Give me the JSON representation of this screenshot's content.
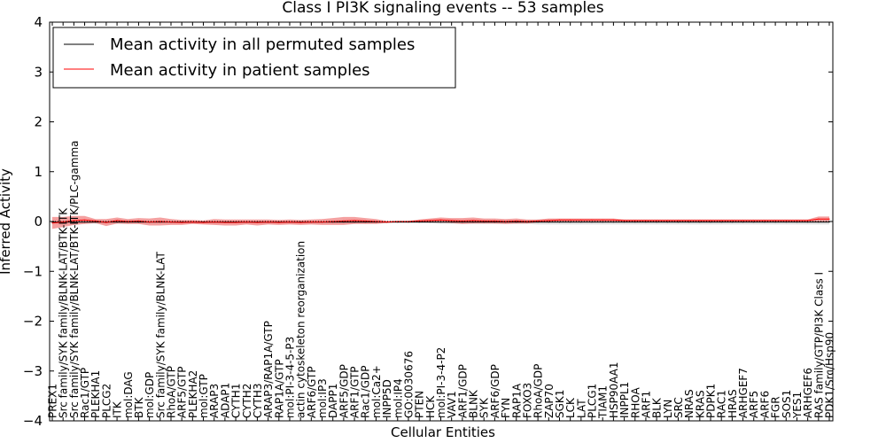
{
  "chart_data": {
    "type": "line",
    "title": "Class I PI3K signaling events -- 53 samples",
    "xlabel": "Cellular Entities",
    "ylabel": "Inferred Activity",
    "ylim": [
      -4,
      4
    ],
    "yticks": [
      -4,
      -3,
      -2,
      -1,
      0,
      1,
      2,
      3,
      4
    ],
    "legend_position": "top-left",
    "categories": [
      "PREX1",
      "Src family/SYK family/BLNK-LAT/BTK-ITK",
      "Src family/SYK family/BLNK-LAT/BTK-ITK/PLC-gamma",
      "Rac1/GTP",
      "PLEKHA1",
      "PLCG2",
      "ITK",
      "mol:DAG",
      "BTK",
      "mol:GDP",
      "Src family/SYK family/BLNK-LAT",
      "RhoA/GTP",
      "ARF5/GTP",
      "PLEKHA2",
      "mol:GTP",
      "ARAP3",
      "ADAP1",
      "CYTH1",
      "CYTH2",
      "CYTH3",
      "ARAP3/RAP1A/GTP",
      "RAP1A/GTP",
      "mol:PI-3-4-5-P3",
      "actin cytoskeleton reorganization",
      "ARF6/GTP",
      "mol:IP3",
      "DAPP1",
      "ARF5/GDP",
      "ARF1/GTP",
      "Rac1/GDP",
      "mol:Ca2+",
      "INPP5D",
      "mol:IP4",
      "GO:0030676",
      "PTEN",
      "HCK",
      "mol:PI-3-4-P2",
      "VAV1",
      "ARF1/GDP",
      "BLNK",
      "SYK",
      "ARF6/GDP",
      "FYN",
      "RAP1A",
      "FOXO3",
      "RhoA/GDP",
      "ZAP70",
      "SGK1",
      "LCK",
      "LAT",
      "PLCG1",
      "TIAM1",
      "HSP90AA1",
      "INPPL1",
      "RHOA",
      "ARF1",
      "BLK",
      "LYN",
      "SRC",
      "NRAS",
      "KRAS",
      "PDPK1",
      "RAC1",
      "HRAS",
      "ARHGEF7",
      "ARF5",
      "ARF6",
      "FGR",
      "SOS1",
      "YES1",
      "ARHGEF6",
      "RAS family/GTP/PI3K Class I",
      "PDK1/Src/Hsp90"
    ],
    "series": [
      {
        "name": "Mean activity in all permuted samples",
        "color": "#000000",
        "values": [
          -0.01,
          -0.01,
          -0.01,
          -0.01,
          -0.01,
          -0.01,
          -0.01,
          -0.01,
          -0.01,
          -0.01,
          -0.01,
          -0.01,
          -0.01,
          -0.01,
          -0.01,
          -0.01,
          -0.01,
          -0.01,
          -0.01,
          -0.01,
          -0.01,
          -0.01,
          -0.01,
          -0.01,
          -0.01,
          -0.01,
          -0.01,
          -0.01,
          -0.01,
          -0.01,
          -0.01,
          -0.01,
          -0.01,
          -0.01,
          -0.01,
          -0.01,
          -0.01,
          -0.01,
          -0.01,
          -0.01,
          -0.01,
          -0.01,
          -0.01,
          -0.01,
          -0.01,
          -0.01,
          -0.01,
          -0.01,
          -0.01,
          -0.01,
          -0.01,
          -0.01,
          -0.01,
          -0.01,
          -0.01,
          -0.01,
          -0.01,
          -0.01,
          -0.01,
          -0.01,
          -0.01,
          -0.01,
          -0.01,
          -0.01,
          -0.01,
          -0.01,
          -0.01,
          -0.01,
          -0.01,
          -0.01,
          -0.01,
          -0.01,
          -0.01
        ],
        "band": [
          0.05,
          0.05,
          0.05,
          0.04,
          0.04,
          0.04,
          0.04,
          0.04,
          0.03,
          0.03,
          0.03,
          0.03,
          0.03,
          0.03,
          0.03,
          0.03,
          0.03,
          0.03,
          0.03,
          0.03,
          0.03,
          0.03,
          0.03,
          0.03,
          0.03,
          0.03,
          0.03,
          0.03,
          0.03,
          0.03,
          0.02,
          0.02,
          0.02,
          0.02,
          0.02,
          0.02,
          0.04,
          0.04,
          0.04,
          0.04,
          0.04,
          0.04,
          0.04,
          0.04,
          0.04,
          0.05,
          0.05,
          0.05,
          0.05,
          0.05,
          0.05,
          0.05,
          0.05,
          0.05,
          0.05,
          0.05,
          0.05,
          0.05,
          0.05,
          0.05,
          0.05,
          0.05,
          0.05,
          0.05,
          0.05,
          0.05,
          0.05,
          0.05,
          0.05,
          0.05,
          0.05,
          0.05,
          0.05
        ]
      },
      {
        "name": "Mean activity in patient samples",
        "color": "#ff0000",
        "values": [
          -0.03,
          -0.01,
          0.02,
          0.03,
          0.01,
          -0.02,
          0.02,
          0.0,
          0.01,
          -0.01,
          0.0,
          -0.01,
          -0.02,
          -0.01,
          -0.02,
          -0.01,
          -0.02,
          -0.02,
          -0.01,
          -0.02,
          -0.01,
          -0.02,
          -0.01,
          -0.02,
          -0.01,
          -0.01,
          0.0,
          0.01,
          0.02,
          0.01,
          0.0,
          -0.01,
          0.0,
          0.0,
          0.01,
          0.02,
          0.03,
          0.02,
          0.01,
          0.02,
          0.01,
          0.01,
          0.0,
          0.01,
          0.0,
          0.01,
          0.02,
          0.03,
          0.03,
          0.03,
          0.03,
          0.03,
          0.03,
          0.02,
          0.02,
          0.02,
          0.02,
          0.02,
          0.02,
          0.02,
          0.02,
          0.02,
          0.02,
          0.02,
          0.02,
          0.02,
          0.02,
          0.02,
          0.02,
          0.02,
          0.02,
          0.05,
          0.05
        ],
        "band": [
          0.12,
          0.1,
          0.09,
          0.08,
          0.04,
          0.07,
          0.06,
          0.05,
          0.06,
          0.07,
          0.08,
          0.06,
          0.05,
          0.04,
          0.04,
          0.06,
          0.06,
          0.06,
          0.05,
          0.06,
          0.05,
          0.05,
          0.05,
          0.05,
          0.05,
          0.06,
          0.07,
          0.08,
          0.07,
          0.06,
          0.05,
          0.02,
          0.01,
          0.01,
          0.03,
          0.04,
          0.05,
          0.05,
          0.06,
          0.06,
          0.05,
          0.05,
          0.05,
          0.05,
          0.04,
          0.03,
          0.04,
          0.03,
          0.03,
          0.03,
          0.03,
          0.03,
          0.03,
          0.02,
          0.02,
          0.02,
          0.02,
          0.02,
          0.02,
          0.02,
          0.02,
          0.02,
          0.02,
          0.02,
          0.02,
          0.02,
          0.02,
          0.02,
          0.02,
          0.02,
          0.02,
          0.05,
          0.05
        ]
      }
    ]
  }
}
